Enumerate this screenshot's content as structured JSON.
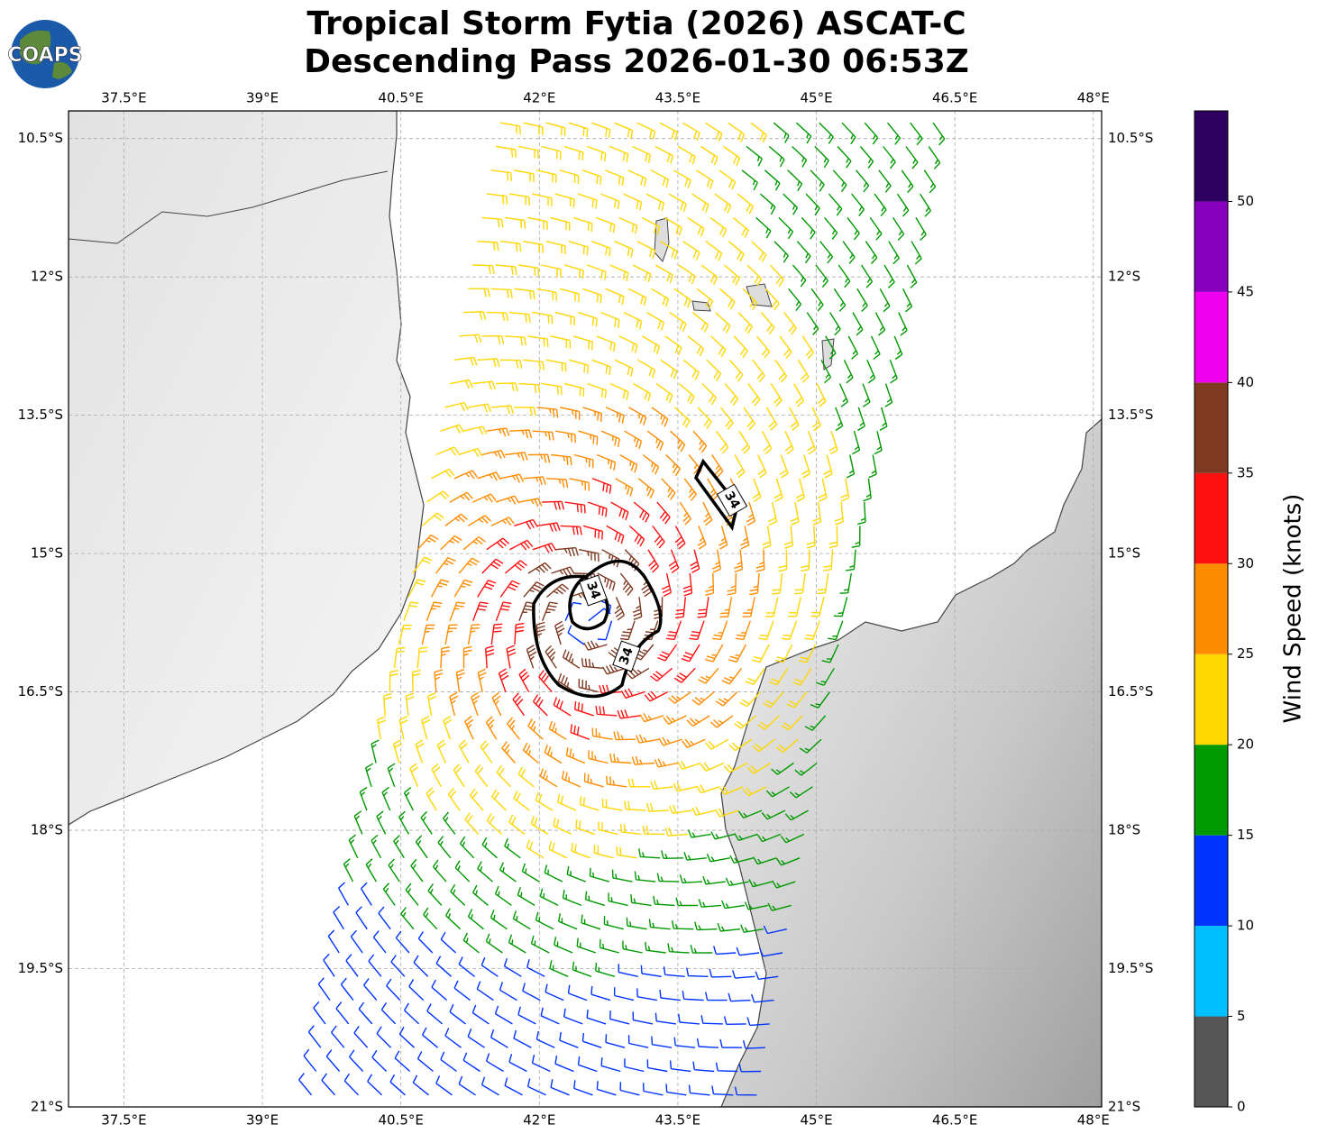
{
  "title": [
    "Tropical Storm Fytia (2026) ASCAT-C",
    "Descending Pass 2026-01-30 06:53Z"
  ],
  "logo": "COAPS",
  "map": {
    "xlim": [
      36.9,
      48.09
    ],
    "ylim": [
      -21,
      -10.2
    ],
    "xticks": [
      {
        "value": 37.5,
        "label": "37.5°E"
      },
      {
        "value": 39,
        "label": "39°E"
      },
      {
        "value": 40.5,
        "label": "40.5°E"
      },
      {
        "value": 42,
        "label": "42°E"
      },
      {
        "value": 43.5,
        "label": "43.5°E"
      },
      {
        "value": 45,
        "label": "45°E"
      },
      {
        "value": 46.5,
        "label": "46.5°E"
      },
      {
        "value": 48,
        "label": "48°E"
      }
    ],
    "yticks": [
      {
        "value": -10.5,
        "label": "10.5°S"
      },
      {
        "value": -12,
        "label": "12°S"
      },
      {
        "value": -13.5,
        "label": "13.5°S"
      },
      {
        "value": -15,
        "label": "15°S"
      },
      {
        "value": -16.5,
        "label": "16.5°S"
      },
      {
        "value": -18,
        "label": "18°S"
      },
      {
        "value": -19.5,
        "label": "19.5°S"
      },
      {
        "value": -21,
        "label": "21°S"
      }
    ],
    "grid": true,
    "contour_labels": [
      34,
      34,
      34
    ]
  },
  "colorbar": {
    "label": "Wind Speed (knots)",
    "lim": [
      0,
      55
    ],
    "bounds": [
      0,
      5,
      10,
      15,
      20,
      25,
      30,
      35,
      40,
      45,
      50,
      55
    ],
    "colors": [
      "#555555",
      "#00bfff",
      "#0033ff",
      "#009900",
      "#ffd700",
      "#ff8c00",
      "#ff1111",
      "#7f3a22",
      "#ee00ee",
      "#8800bb",
      "#2d0060"
    ],
    "ticks": [
      0,
      5,
      10,
      15,
      20,
      25,
      30,
      35,
      40,
      45,
      50
    ]
  }
}
